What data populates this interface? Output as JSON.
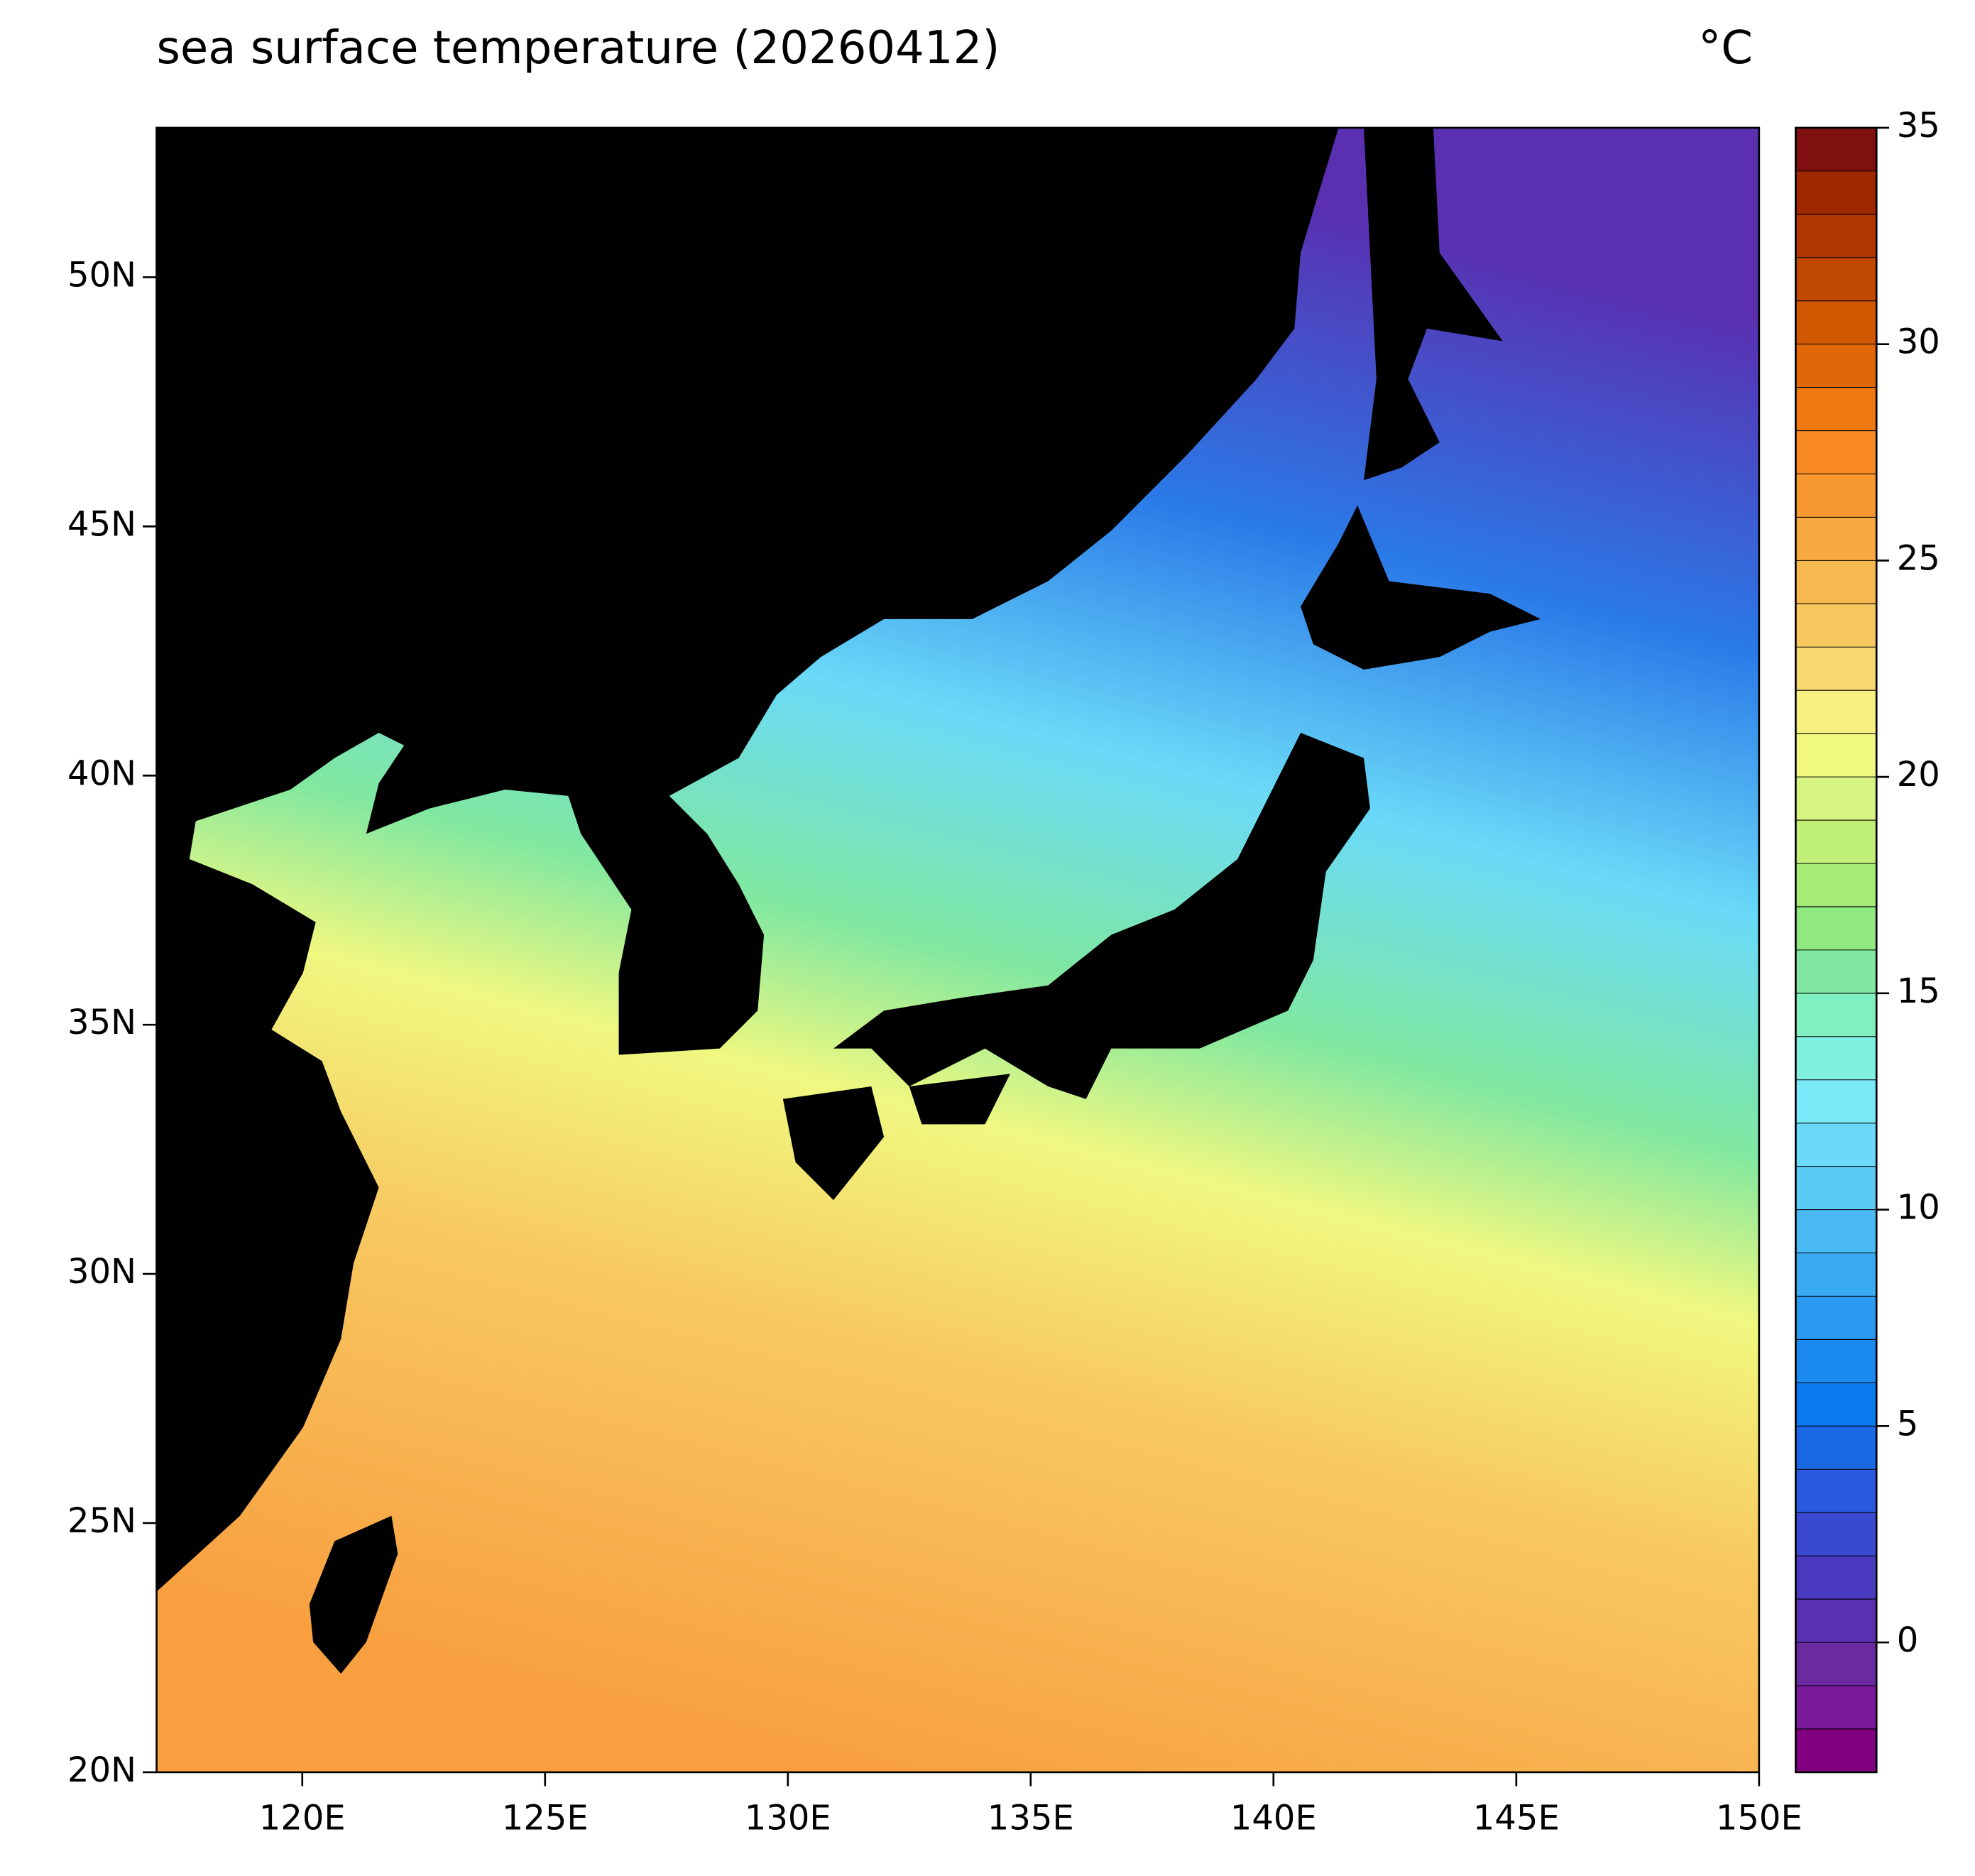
{
  "chart_data": {
    "type": "map",
    "title": "sea surface temperature (20260412)",
    "unit": "°C",
    "xlim": [
      117,
      150
    ],
    "ylim": [
      20,
      53
    ],
    "xticks": [
      {
        "value": 120,
        "label": "120E"
      },
      {
        "value": 125,
        "label": "125E"
      },
      {
        "value": 130,
        "label": "130E"
      },
      {
        "value": 135,
        "label": "135E"
      },
      {
        "value": 140,
        "label": "140E"
      },
      {
        "value": 145,
        "label": "145E"
      },
      {
        "value": 150,
        "label": "150E"
      }
    ],
    "yticks": [
      {
        "value": 20,
        "label": "20N"
      },
      {
        "value": 25,
        "label": "25N"
      },
      {
        "value": 30,
        "label": "30N"
      },
      {
        "value": 35,
        "label": "35N"
      },
      {
        "value": 40,
        "label": "40N"
      },
      {
        "value": 45,
        "label": "45N"
      },
      {
        "value": 50,
        "label": "50N"
      }
    ],
    "levels": [
      -3,
      -2,
      -1,
      0,
      1,
      2,
      3,
      4,
      5,
      6,
      7,
      8,
      9,
      10,
      11,
      12,
      13,
      14,
      15,
      16,
      17,
      18,
      19,
      20,
      21,
      22,
      23,
      24,
      25,
      26,
      27,
      28,
      29,
      30,
      31,
      32,
      33,
      34,
      35
    ],
    "colors": [
      "#800080",
      "#7a1a9a",
      "#6a2aa0",
      "#5a2fb0",
      "#4a3ac0",
      "#3a4ad0",
      "#2a5ae0",
      "#1a6ae8",
      "#0a7af0",
      "#1a8af0",
      "#2a9af0",
      "#3aaaf2",
      "#4abaf4",
      "#5acaf6",
      "#6adaf8",
      "#7aeaf8",
      "#80f0e0",
      "#80f0c0",
      "#80e8a0",
      "#90e880",
      "#a8ec78",
      "#c0f078",
      "#d8f480",
      "#f0f880",
      "#f8f080",
      "#f8d870",
      "#f8c860",
      "#f8b850",
      "#f8a840",
      "#f89830",
      "#f88820",
      "#f07810",
      "#e06808",
      "#d05800",
      "#c04800",
      "#b03800",
      "#a02800",
      "#801010"
    ],
    "cticks": [
      0,
      5,
      10,
      15,
      20,
      25,
      30,
      35
    ]
  }
}
